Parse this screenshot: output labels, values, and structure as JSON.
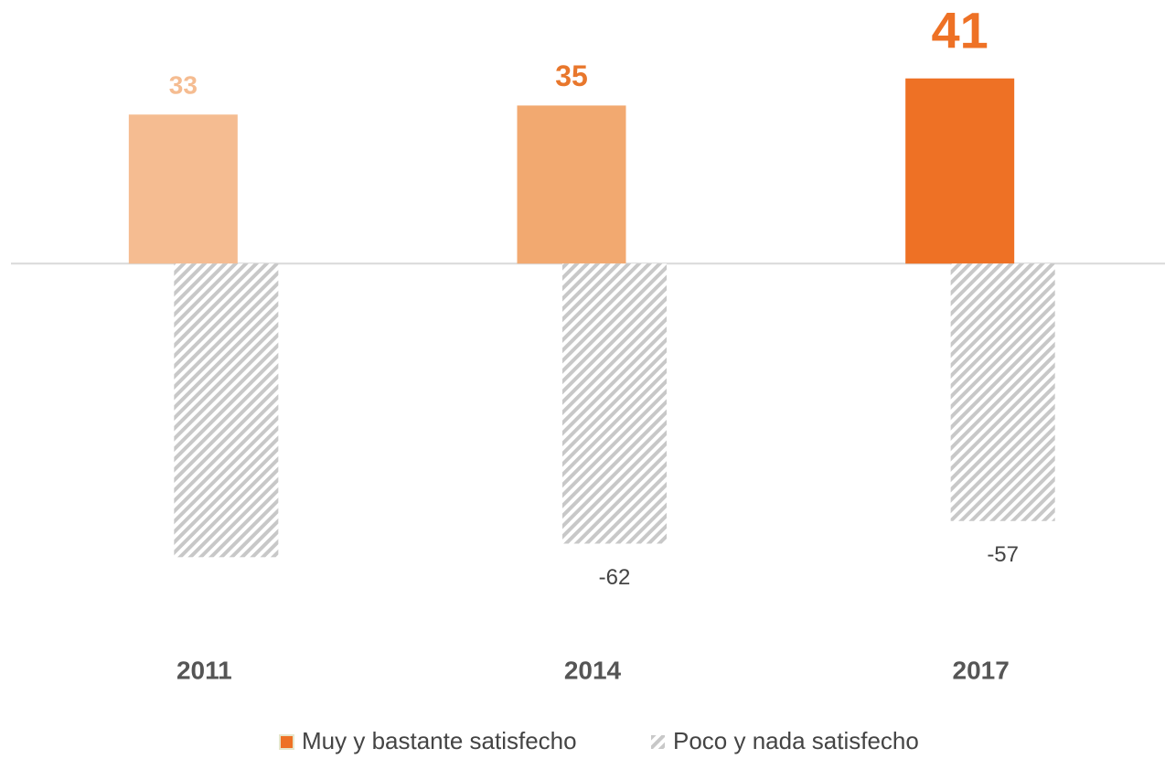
{
  "chart_data": {
    "type": "bar",
    "categories": [
      "2011",
      "2014",
      "2017"
    ],
    "series": [
      {
        "name": "Muy y bastante satisfecho",
        "color": "#ee7125",
        "colors": [
          "#f5bc91",
          "#f2a970",
          "#ee7125"
        ],
        "label_colors": [
          "#f5bc91",
          "#e8772c",
          "#ee7125"
        ],
        "values": [
          33,
          35,
          41
        ],
        "value_labels": [
          "33",
          "35",
          "41"
        ]
      },
      {
        "name": "Poco y nada satisfecho",
        "color": "#c8c8c8",
        "pattern": "diagonal-hatch",
        "values": [
          -65,
          -62,
          -57
        ],
        "value_labels": [
          null,
          "-62",
          "-57"
        ]
      }
    ],
    "ylim": [
      -70,
      45
    ],
    "grid": false,
    "legend": "bottom"
  }
}
